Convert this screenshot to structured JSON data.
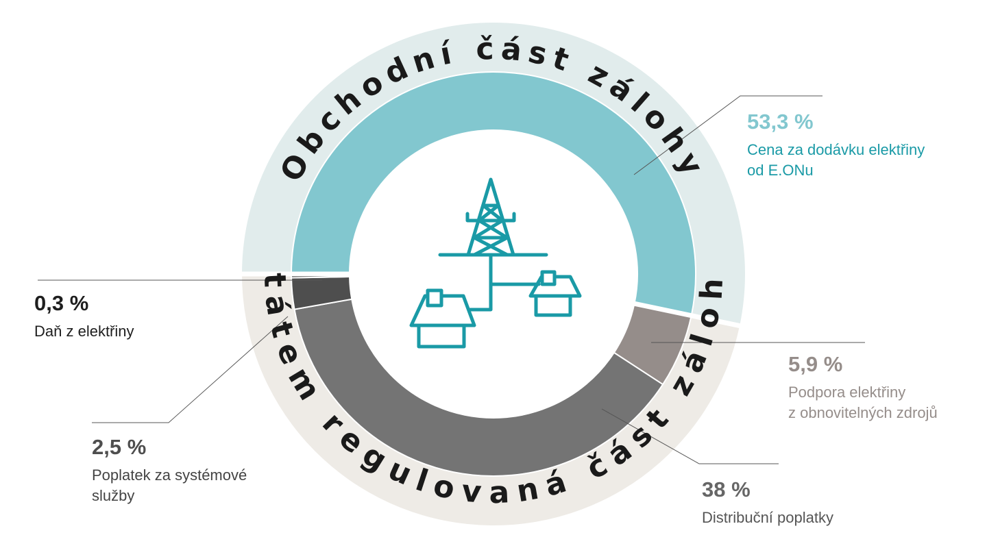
{
  "colors": {
    "outer_commercial": "#e1ecec",
    "outer_regulated": "#eeebe6",
    "icon": "#1a9aa6",
    "separator": "#ffffff"
  },
  "chart_data": {
    "type": "donut",
    "outer_ring": [
      {
        "label": "Obchodní část zálohy",
        "color": "#e1ecec"
      },
      {
        "label": "Státem regulovaná část zálohy",
        "color": "#eeebe6"
      }
    ],
    "segments": [
      {
        "value_label": "53,3 %",
        "value": 53.3,
        "description": [
          "Cena za dodávku elektřiny",
          "od E.ONu"
        ],
        "color": "#82c7cf",
        "text_color": "#82c7cf",
        "desc_color": "#1a9aa6"
      },
      {
        "value_label": "5,9 %",
        "value": 5.9,
        "description": [
          "Podpora elektřiny",
          "z obnovitelných zdrojů"
        ],
        "color": "#958d8a",
        "text_color": "#958d8a",
        "desc_color": "#958d8a"
      },
      {
        "value_label": "38 %",
        "value": 38,
        "description": [
          "Distribuční poplatky"
        ],
        "color": "#747474",
        "text_color": "#666666",
        "desc_color": "#555555"
      },
      {
        "value_label": "2,5 %",
        "value": 2.5,
        "description": [
          "Poplatek za systémové",
          "služby"
        ],
        "color": "#4e4e4e",
        "text_color": "#4e4e4e",
        "desc_color": "#444444"
      },
      {
        "value_label": "0,3 %",
        "value": 0.3,
        "description": [
          "Daň z elektřiny"
        ],
        "color": "#1e1e1e",
        "text_color": "#1e1e1e",
        "desc_color": "#1e1e1e"
      }
    ],
    "center_icon": "power-pylon-houses-icon"
  }
}
